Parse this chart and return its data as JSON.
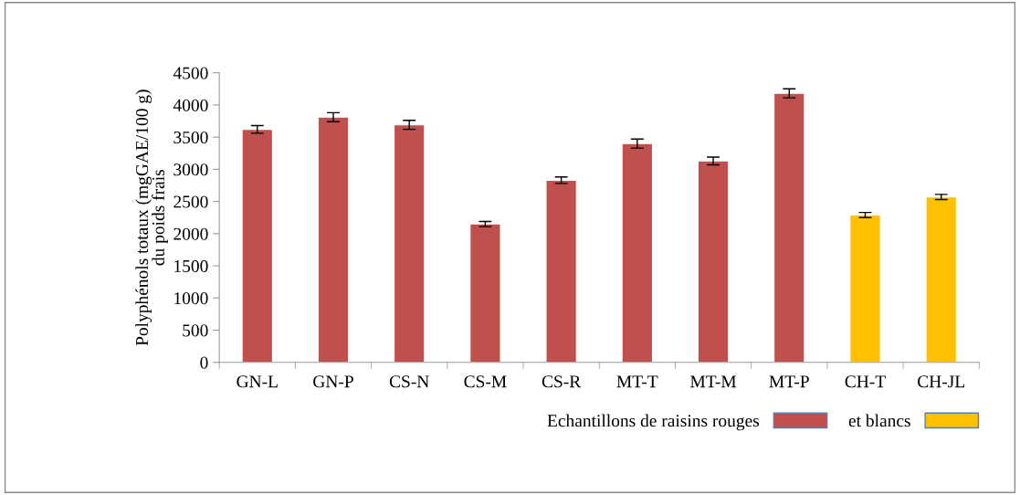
{
  "chart_data": {
    "type": "bar",
    "ylabel": "Polyphénols totaux (mgGAE/100 g)\ndu poids frais",
    "categories": [
      "GN-L",
      "GN-P",
      "CS-N",
      "CS-M",
      "CS-R",
      "MT-T",
      "MT-M",
      "MT-P",
      "CH-T",
      "CH-JL"
    ],
    "series": [
      {
        "name": "Echantillons de raisins rouges",
        "color": "#c0504d",
        "values": [
          3620,
          3810,
          3690,
          2150,
          2830,
          3400,
          3130,
          4180,
          null,
          null
        ],
        "errors": [
          60,
          70,
          70,
          40,
          50,
          70,
          60,
          70,
          null,
          null
        ]
      },
      {
        "name": "et blancs",
        "color": "#ffc000",
        "values": [
          null,
          null,
          null,
          null,
          null,
          null,
          null,
          null,
          2290,
          2570
        ],
        "errors": [
          null,
          null,
          null,
          null,
          null,
          null,
          null,
          null,
          40,
          40
        ]
      }
    ],
    "ylim": [
      0,
      4500
    ],
    "yticks": [
      0,
      500,
      1000,
      1500,
      2000,
      2500,
      3000,
      3500,
      4000,
      4500
    ],
    "grid": false,
    "legend": "bottom"
  }
}
